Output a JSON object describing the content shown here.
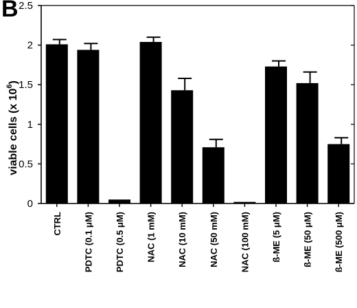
{
  "panel_label": "B",
  "chart_data": {
    "type": "bar",
    "title": "",
    "xlabel": "",
    "ylabel": "viable cells (x 10",
    "ylabel_exp": "6",
    "ylabel_tail": ")",
    "ylim": [
      0,
      2.5
    ],
    "yticks": [
      "0",
      "0.5",
      "1",
      "1.5",
      "2",
      "2.5"
    ],
    "ytick_values": [
      0,
      0.5,
      1,
      1.5,
      2,
      2.5
    ],
    "categories": [
      "CTRL",
      "PDTC (0.1 μM)",
      "PDTC (0.5 μM)",
      "NAC (1 mM)",
      "NAC (10 mM)",
      "NAC (50 mM)",
      "NAC (100 mM)",
      "ß-ME (5 μM)",
      "ß-ME (50 μM)",
      "ß-ME (500 μM)"
    ],
    "values": [
      2.01,
      1.94,
      0.05,
      2.04,
      1.43,
      0.71,
      0.02,
      1.73,
      1.52,
      0.75
    ],
    "errors": [
      0.06,
      0.08,
      0.0,
      0.06,
      0.15,
      0.1,
      0.0,
      0.07,
      0.14,
      0.08
    ],
    "grid": false,
    "bar_color": "#000000"
  }
}
